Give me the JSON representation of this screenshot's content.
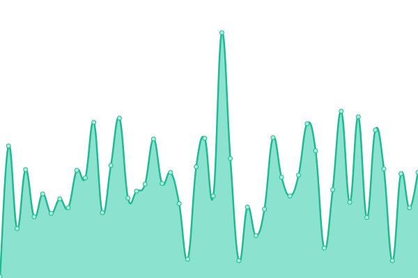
{
  "chart_data": {
    "type": "area",
    "values": [
      2,
      190,
      71,
      156,
      88,
      121,
      93,
      114,
      101,
      155,
      144,
      224,
      94,
      162,
      230,
      115,
      125,
      135,
      200,
      136,
      152,
      107,
      27,
      160,
      201,
      118,
      353,
      172,
      25,
      102,
      61,
      99,
      202,
      145,
      118,
      148,
      222,
      183,
      43,
      127,
      240,
      109,
      232,
      87,
      213,
      157,
      25,
      150,
      101,
      152
    ],
    "ylim": [
      0,
      400
    ],
    "color": "#1fba93",
    "fill": "#8be2cf",
    "marker_fill": "#a9ecdc"
  }
}
